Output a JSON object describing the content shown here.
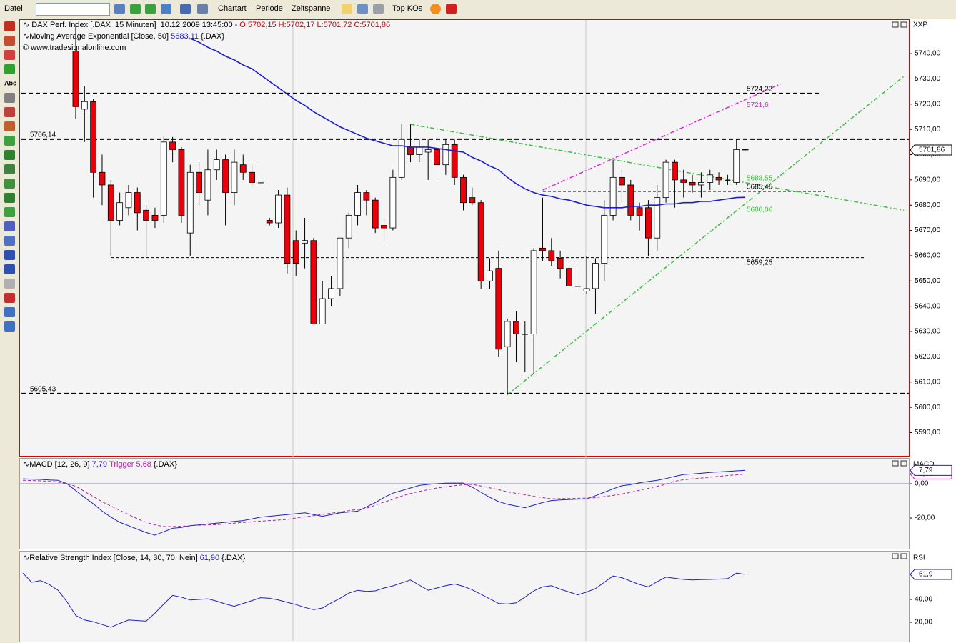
{
  "toolbar": {
    "menu": "Datei",
    "items": [
      "Chartart",
      "Periode",
      "Zeitspanne"
    ],
    "top": "Top KOs",
    "tools_label": "Abc"
  },
  "chart_data": [
    {
      "type": "candlestick",
      "title": "DAX Perf. Index [.DAX  15 Minuten]  10.12.2009 13:45:00 -",
      "ohlc_labels": [
        "O:5702,15",
        "H:5702,17",
        "L:5701,72",
        "C:5701,86"
      ],
      "copyright": "© www.tradesignalonline.com",
      "axis_title": "XXP",
      "last_label": "5701,86",
      "categories": [
        null,
        null,
        null,
        null,
        null,
        null,
        null,
        null,
        null,
        null,
        null,
        null,
        null,
        null,
        null,
        null,
        null,
        null,
        null,
        null,
        null,
        null,
        null,
        null,
        null,
        null,
        null,
        null,
        null,
        null,
        null,
        null,
        null,
        null,
        null,
        null,
        null,
        null,
        null,
        null,
        null,
        null,
        null,
        null,
        null,
        null,
        null,
        null,
        null,
        null,
        null,
        null,
        null,
        null,
        null,
        null,
        null,
        null,
        null,
        null,
        null,
        null,
        null,
        null,
        null,
        null,
        null,
        null,
        null,
        null,
        null,
        null,
        null,
        null,
        null,
        null,
        null,
        null,
        null,
        null,
        null,
        null,
        null
      ],
      "open": [
        null,
        null,
        null,
        null,
        null,
        null,
        5741,
        5718,
        5721,
        5693,
        5688,
        5674,
        5679,
        5685,
        5678,
        5676,
        5676,
        5705,
        5702,
        5669,
        5693,
        5682,
        5694,
        5698,
        5685,
        5696,
        5693,
        5689,
        5674,
        5673,
        5684,
        5666,
        5665,
        5666,
        5633,
        5643,
        5647,
        5667,
        5676,
        5685,
        5682,
        5672,
        5671,
        5691,
        5703,
        5700,
        5701,
        5702,
        5696,
        5704,
        5691,
        5683,
        5681,
        5650,
        5655,
        5624,
        5634,
        5629,
        5629,
        5663,
        5662,
        5659,
        5655,
        5648,
        5646,
        5647,
        5657,
        5676,
        5691,
        5688,
        5679,
        5679,
        5667,
        5683,
        5697,
        5690,
        5689,
        5688,
        5689,
        5691,
        5690,
        5689,
        5702.15
      ],
      "high": [
        null,
        null,
        null,
        null,
        null,
        null,
        5752,
        5727,
        5722,
        5700,
        5690,
        5685,
        5688,
        5687,
        5680,
        5679,
        5707,
        5707,
        5703,
        5696,
        5697,
        5702,
        5702,
        5700,
        5702,
        5700,
        5696,
        5689,
        5675,
        5686,
        5687,
        5670,
        5675,
        5667,
        5650,
        5652,
        5667,
        5677,
        5688,
        5686,
        5683,
        5675,
        5694,
        5712,
        5712,
        5706,
        5706,
        5706,
        5706,
        5706,
        5692,
        5687,
        5682,
        5659,
        5662,
        5635,
        5638,
        5634,
        5663,
        5683,
        5667,
        5662,
        5656,
        5648,
        5660,
        5659,
        5682,
        5698,
        5694,
        5690,
        5681,
        5682,
        5688,
        5698,
        5698,
        5694,
        5692,
        5693,
        5694,
        5693,
        5692,
        5706,
        5702.17
      ],
      "low": [
        null,
        null,
        null,
        null,
        null,
        null,
        5714,
        5705,
        5683,
        5680,
        5660,
        5672,
        5676,
        5670,
        5660,
        5671,
        5673,
        5697,
        5673,
        5660,
        5680,
        5676,
        5690,
        5672,
        5680,
        5690,
        5687,
        5689,
        5672,
        5671,
        5653,
        5652,
        5655,
        5633,
        5633,
        5640,
        5644,
        5663,
        5672,
        5676,
        5669,
        5666,
        5670,
        5690,
        5697,
        5697,
        5690,
        5690,
        5692,
        5688,
        5678,
        5680,
        5647,
        5647,
        5620,
        5605,
        5618,
        5614,
        5613,
        5658,
        5656,
        5651,
        5648,
        5648,
        5645,
        5637,
        5650,
        5674,
        5681,
        5674,
        5670,
        5660,
        5662,
        5681,
        5679,
        5683,
        5685,
        5683,
        5686,
        5688,
        5688,
        5688,
        5701.72
      ],
      "close": [
        null,
        null,
        null,
        null,
        null,
        null,
        5719,
        5721,
        5693,
        5688,
        5674,
        5681,
        5685,
        5677,
        5674,
        5674,
        5705,
        5702,
        5676,
        5693,
        5685,
        5694,
        5698,
        5685,
        5697,
        5693,
        5689,
        5689,
        5673,
        5684,
        5657,
        5657,
        5666,
        5633,
        5643,
        5647,
        5667,
        5676,
        5685,
        5682,
        5671,
        5671,
        5691,
        5706,
        5700,
        5703,
        5702,
        5696,
        5704,
        5691,
        5681,
        5681,
        5650,
        5654,
        5623,
        5634,
        5629,
        5629,
        5662,
        5662,
        5658,
        5655,
        5648,
        5648,
        5647,
        5657,
        5676,
        5691,
        5688,
        5676,
        5676,
        5667,
        5683,
        5697,
        5690,
        5689,
        5688,
        5689,
        5692,
        5690,
        5690,
        5702,
        5701.86
      ],
      "up_color": "#ffffff",
      "down_color": "#e8000b",
      "overlay": {
        "name": "Moving Average Exponential [Close, 50]",
        "value_label": "5683,11",
        "suffix": "{.DAX}",
        "color": "#1c1cd8",
        "values": [
          null,
          null,
          null,
          null,
          null,
          null,
          null,
          null,
          null,
          null,
          null,
          null,
          null,
          null,
          null,
          null,
          null,
          null,
          null,
          5746,
          5744.5,
          5742.5,
          5741,
          5739,
          5737.5,
          5735.5,
          5734,
          5731.5,
          5729,
          5726.5,
          5724,
          5721.5,
          5719.5,
          5717,
          5715,
          5713,
          5711,
          5709.5,
          5708,
          5706.5,
          5705.5,
          5704.5,
          5703.5,
          5703.5,
          5703,
          5703,
          5703,
          5702.5,
          5702,
          5701.5,
          5701,
          5699,
          5697.5,
          5695.5,
          5694,
          5691,
          5688.5,
          5686.5,
          5685,
          5684,
          5683.5,
          5682.5,
          5682,
          5681,
          5680,
          5679.5,
          5679,
          5679,
          5679,
          5679.5,
          5679.5,
          5680,
          5680,
          5680.5,
          5680.5,
          5681,
          5681,
          5681.5,
          5681.5,
          5682,
          5682.5,
          5683,
          5683.11
        ]
      },
      "levels": [
        {
          "label": "5724,22",
          "value": 5724.22
        },
        {
          "label": "5706,14",
          "value": 5706.14
        },
        {
          "label": "5605,43",
          "value": 5605.43
        },
        {
          "label": "5685,45",
          "value": 5685.45
        },
        {
          "label": "5659,25",
          "value": 5659.25
        }
      ],
      "trendlines": [
        {
          "label": "5721,6",
          "value": 5721.6,
          "color": "#e020e0",
          "x": [
            59,
            86
          ],
          "values": [
            5686,
            5728
          ]
        },
        {
          "label": "5688,55",
          "value": 5688.55,
          "color": "#3cc03c",
          "x": [
            44,
            100
          ],
          "values": [
            5712,
            5678
          ]
        },
        {
          "label": "5680,06",
          "value": 5680.06,
          "color": "#3cc03c",
          "x": [
            55,
            100
          ],
          "values": [
            5605,
            5731
          ]
        }
      ],
      "ylim": [
        5580.8,
        5753.6
      ],
      "yticks": [
        {
          "value": 5590,
          "label": "5590,00"
        },
        {
          "value": 5600,
          "label": "5600,00"
        },
        {
          "value": 5610,
          "label": "5610,00"
        },
        {
          "value": 5620,
          "label": "5620,00"
        },
        {
          "value": 5630,
          "label": "5630,00"
        },
        {
          "value": 5640,
          "label": "5640,00"
        },
        {
          "value": 5650,
          "label": "5650,00"
        },
        {
          "value": 5660,
          "label": "5660,00"
        },
        {
          "value": 5670,
          "label": "5670,00"
        },
        {
          "value": 5680,
          "label": "5680,00"
        },
        {
          "value": 5690,
          "label": "5690,00"
        },
        {
          "value": 5700,
          "label": "5700,00"
        },
        {
          "value": 5710,
          "label": "5710,00"
        },
        {
          "value": 5720,
          "label": "5720,00"
        },
        {
          "value": 5730,
          "label": "5730,00"
        },
        {
          "value": 5740,
          "label": "5740,00"
        }
      ]
    },
    {
      "type": "line",
      "title": "MACD [12, 26, 9]",
      "suffix": "{.DAX}",
      "axis_title": "MACD",
      "series": [
        {
          "value_label": "7,79",
          "color": "#2020c0",
          "values": [
            2.9,
            2.7,
            2.5,
            2.2,
            2,
            0,
            -4,
            -8,
            -11.7,
            -16,
            -19.5,
            -22.5,
            -24.5,
            -26.5,
            -28.5,
            -30,
            -28,
            -26,
            -25.5,
            -24.5,
            -24,
            -23.5,
            -23,
            -22.5,
            -22,
            -21.5,
            -20.5,
            -19.5,
            -19,
            -18.5,
            -18,
            -17.5,
            -17,
            -18,
            -19,
            -18,
            -17,
            -16.5,
            -16,
            -13.5,
            -11,
            -8,
            -5.5,
            -4,
            -2.5,
            -1,
            -0.4,
            0,
            0.3,
            0.4,
            0.4,
            -2,
            -5,
            -8,
            -10.4,
            -12,
            -13,
            -14,
            -12.5,
            -11,
            -9.8,
            -9.5,
            -9.2,
            -9,
            -8.8,
            -7,
            -5,
            -3,
            -1.2,
            -0.5,
            0.5,
            1.3,
            2,
            3,
            4.3,
            5.4,
            5.7,
            6.1,
            6.6,
            6.9,
            7.2,
            7.5,
            7.79
          ]
        },
        {
          "name": "Trigger",
          "value_label": "5,68",
          "color": "#b020a0",
          "dash": true,
          "values": [
            2,
            1.9,
            1.7,
            1.4,
            1,
            0,
            -1.5,
            -4.5,
            -7.5,
            -10.5,
            -13,
            -15.5,
            -18,
            -20.5,
            -22.5,
            -24,
            -25,
            -25,
            -24.8,
            -24.5,
            -24.2,
            -24,
            -23.9,
            -23.5,
            -23,
            -22.6,
            -22.2,
            -21.8,
            -21.5,
            -21.2,
            -20.8,
            -20,
            -19.3,
            -18.6,
            -17.9,
            -17.2,
            -16.5,
            -15.7,
            -15,
            -14.3,
            -12.5,
            -10.7,
            -9,
            -7.2,
            -5.7,
            -4.5,
            -3.5,
            -2.5,
            -1.8,
            -1.1,
            -0.6,
            -0.4,
            -1.3,
            -2.4,
            -3.5,
            -4.7,
            -5.6,
            -6.4,
            -7.3,
            -8.1,
            -8.8,
            -8.7,
            -8.6,
            -8.5,
            -8.4,
            -8.1,
            -7.5,
            -6.8,
            -6,
            -5,
            -3.8,
            -2.7,
            -1.5,
            -0.4,
            1.5,
            2.3,
            2.8,
            3.3,
            3.8,
            4.3,
            4.8,
            5.2,
            5.68
          ]
        }
      ],
      "ylim": [
        -37.9,
        14.6
      ],
      "yticks": [
        {
          "value": 0,
          "label": "0,00"
        },
        {
          "value": -20,
          "label": "-20,00"
        }
      ]
    },
    {
      "type": "line",
      "title": "Relative Strength Index [Close, 14, 30, 70, Nein]",
      "suffix": "{.DAX}",
      "axis_title": "RSI",
      "series": [
        {
          "value_label": "61,90",
          "axis_label": "61,9",
          "color": "#2020c0",
          "values": [
            63,
            55,
            56.5,
            53,
            48,
            38,
            26,
            22,
            20.5,
            18,
            15.6,
            19,
            22,
            21.5,
            21,
            28,
            36,
            43.5,
            42,
            39.5,
            40,
            40.6,
            38.5,
            36,
            34,
            36.5,
            39,
            41.5,
            41,
            39.5,
            37.5,
            35.5,
            33,
            31,
            32.5,
            37,
            41,
            45.5,
            48,
            47,
            47.5,
            50,
            51.9,
            54.5,
            57,
            52.5,
            48,
            50,
            52,
            53.5,
            51.5,
            48.5,
            44.5,
            40.5,
            36.5,
            36,
            37,
            42,
            47.5,
            51,
            52,
            49,
            46.5,
            44,
            46.5,
            49.5,
            55,
            60.5,
            59,
            56,
            53,
            51,
            55.5,
            59.5,
            58.5,
            57.5,
            57,
            57.3,
            57.5,
            57.8,
            58.2,
            63,
            61.9
          ]
        }
      ],
      "ylim": [
        3.75,
        81.9
      ],
      "yticks": [
        {
          "value": 40,
          "label": "40,00"
        },
        {
          "value": 20,
          "label": "20,00"
        }
      ]
    }
  ]
}
